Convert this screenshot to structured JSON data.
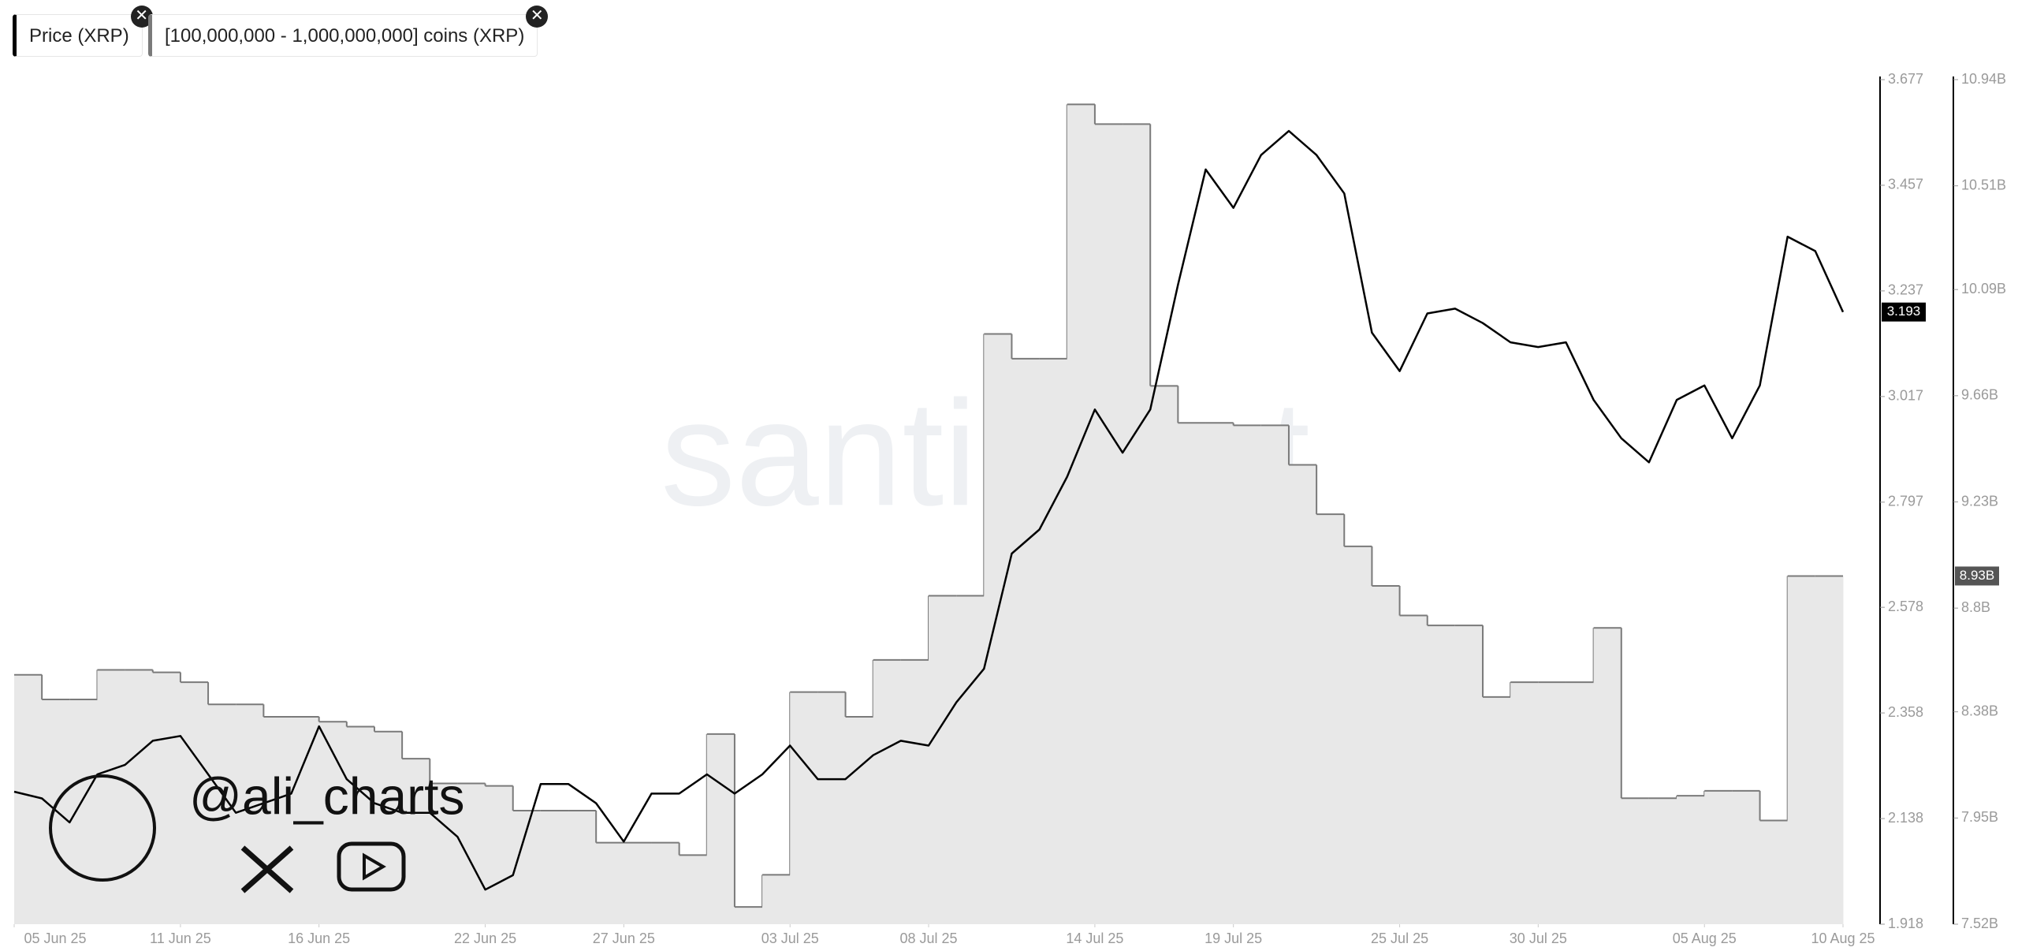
{
  "chart_data": {
    "type": "line",
    "watermark": "santiment",
    "author": "@ali_charts",
    "x": [
      "2025-06-05",
      "2025-06-06",
      "2025-06-07",
      "2025-06-08",
      "2025-06-09",
      "2025-06-10",
      "2025-06-11",
      "2025-06-12",
      "2025-06-13",
      "2025-06-14",
      "2025-06-15",
      "2025-06-16",
      "2025-06-17",
      "2025-06-18",
      "2025-06-19",
      "2025-06-20",
      "2025-06-21",
      "2025-06-22",
      "2025-06-23",
      "2025-06-24",
      "2025-06-25",
      "2025-06-26",
      "2025-06-27",
      "2025-06-28",
      "2025-06-29",
      "2025-06-30",
      "2025-07-01",
      "2025-07-02",
      "2025-07-03",
      "2025-07-04",
      "2025-07-05",
      "2025-07-06",
      "2025-07-07",
      "2025-07-08",
      "2025-07-09",
      "2025-07-10",
      "2025-07-11",
      "2025-07-12",
      "2025-07-13",
      "2025-07-14",
      "2025-07-15",
      "2025-07-16",
      "2025-07-17",
      "2025-07-18",
      "2025-07-19",
      "2025-07-20",
      "2025-07-21",
      "2025-07-22",
      "2025-07-23",
      "2025-07-24",
      "2025-07-25",
      "2025-07-26",
      "2025-07-27",
      "2025-07-28",
      "2025-07-29",
      "2025-07-30",
      "2025-07-31",
      "2025-08-01",
      "2025-08-02",
      "2025-08-03",
      "2025-08-04",
      "2025-08-05",
      "2025-08-06",
      "2025-08-07",
      "2025-08-08",
      "2025-08-09",
      "2025-08-10"
    ],
    "xlim": [
      "2025-06-05",
      "2025-08-10"
    ],
    "xticks": [
      {
        "value": "2025-06-05",
        "label": "05 Jun 25"
      },
      {
        "value": "2025-06-11",
        "label": "11 Jun 25"
      },
      {
        "value": "2025-06-16",
        "label": "16 Jun 25"
      },
      {
        "value": "2025-06-22",
        "label": "22 Jun 25"
      },
      {
        "value": "2025-06-27",
        "label": "27 Jun 25"
      },
      {
        "value": "2025-07-03",
        "label": "03 Jul 25"
      },
      {
        "value": "2025-07-08",
        "label": "08 Jul 25"
      },
      {
        "value": "2025-07-14",
        "label": "14 Jul 25"
      },
      {
        "value": "2025-07-19",
        "label": "19 Jul 25"
      },
      {
        "value": "2025-07-25",
        "label": "25 Jul 25"
      },
      {
        "value": "2025-07-30",
        "label": "30 Jul 25"
      },
      {
        "value": "2025-08-05",
        "label": "05 Aug 25"
      },
      {
        "value": "2025-08-10",
        "label": "10 Aug 25"
      }
    ],
    "ylim": [
      1.918,
      3.677
    ],
    "yticks": [
      1.918,
      2.138,
      2.358,
      2.578,
      2.797,
      3.017,
      3.237,
      3.457,
      3.677
    ],
    "y2lim": [
      7520000000,
      10940000000
    ],
    "y2ticks": [
      {
        "value": 7520000000,
        "label": "7.52B"
      },
      {
        "value": 7950000000,
        "label": "7.95B"
      },
      {
        "value": 8380000000,
        "label": "8.38B"
      },
      {
        "value": 8800000000,
        "label": "8.8B"
      },
      {
        "value": 9230000000,
        "label": "9.23B"
      },
      {
        "value": 9660000000,
        "label": "9.66B"
      },
      {
        "value": 10090000000,
        "label": "10.09B"
      },
      {
        "value": 10510000000,
        "label": "10.51B"
      },
      {
        "value": 10940000000,
        "label": "10.94B"
      }
    ],
    "series": [
      {
        "name": "Price (XRP)",
        "color": "#000000",
        "axis": "y",
        "last_label": "3.193",
        "values": [
          2.194,
          2.18,
          2.13,
          2.23,
          2.25,
          2.3,
          2.31,
          2.23,
          2.15,
          2.17,
          2.19,
          2.33,
          2.22,
          2.17,
          2.15,
          2.15,
          2.1,
          1.99,
          2.02,
          2.21,
          2.21,
          2.17,
          2.09,
          2.19,
          2.19,
          2.23,
          2.19,
          2.23,
          2.29,
          2.22,
          2.22,
          2.27,
          2.3,
          2.29,
          2.38,
          2.45,
          2.69,
          2.74,
          2.85,
          2.99,
          2.9,
          2.99,
          3.25,
          3.49,
          3.41,
          3.52,
          3.57,
          3.52,
          3.44,
          3.15,
          3.07,
          3.19,
          3.2,
          3.17,
          3.13,
          3.12,
          3.13,
          3.01,
          2.93,
          2.88,
          3.01,
          3.04,
          2.93,
          3.04,
          3.35,
          3.32,
          3.193
        ]
      },
      {
        "name": "[100,000,000 - 1,000,000,000] coins (XRP)",
        "color": "#7a7a7a",
        "axis": "y2",
        "step": true,
        "last_label": "8.93B",
        "values": [
          8530000000,
          8430000000,
          8430000000,
          8550000000,
          8550000000,
          8540000000,
          8500000000,
          8410000000,
          8410000000,
          8360000000,
          8360000000,
          8340000000,
          8320000000,
          8300000000,
          8190000000,
          8090000000,
          8090000000,
          8080000000,
          7980000000,
          7980000000,
          7980000000,
          7850000000,
          7850000000,
          7850000000,
          7800000000,
          8290000000,
          7590000000,
          7720000000,
          8460000000,
          8460000000,
          8360000000,
          8590000000,
          8590000000,
          8850000000,
          8850000000,
          9910000000,
          9810000000,
          9810000000,
          10840000000,
          10760000000,
          10760000000,
          9700000000,
          9550000000,
          9550000000,
          9540000000,
          9540000000,
          9380000000,
          9180000000,
          9050000000,
          8890000000,
          8770000000,
          8730000000,
          8730000000,
          8440000000,
          8500000000,
          8500000000,
          8500000000,
          8720000000,
          8030000000,
          8030000000,
          8040000000,
          8060000000,
          8060000000,
          7940000000,
          8930000000,
          8930000000,
          8930000000
        ]
      }
    ]
  }
}
